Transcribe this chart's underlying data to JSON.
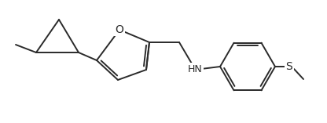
{
  "bg_color": "#ffffff",
  "line_color": "#2a2a2a",
  "line_width": 1.4,
  "figsize": [
    4.16,
    1.57
  ],
  "dpi": 100,
  "xlim": [
    0,
    416
  ],
  "ylim": [
    0,
    157
  ]
}
